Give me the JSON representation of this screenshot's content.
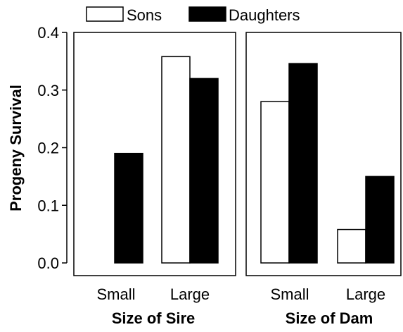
{
  "chart_data": {
    "type": "bar",
    "ylabel": "Progeny Survival",
    "ylim": [
      0,
      0.4
    ],
    "yticks": [
      "0.0",
      "0.1",
      "0.2",
      "0.3",
      "0.4"
    ],
    "legend": {
      "placement": "top",
      "entries": [
        {
          "name": "Sons",
          "fill": "#ffffff"
        },
        {
          "name": "Daughters",
          "fill": "#000000"
        }
      ]
    },
    "panels": [
      {
        "xlabel": "Size of Sire",
        "categories": [
          "Small",
          "Large"
        ],
        "series": [
          {
            "name": "Sons",
            "values": [
              0.0,
              0.358
            ]
          },
          {
            "name": "Daughters",
            "values": [
              0.19,
              0.32
            ]
          }
        ]
      },
      {
        "xlabel": "Size of Dam",
        "categories": [
          "Small",
          "Large"
        ],
        "series": [
          {
            "name": "Sons",
            "values": [
              0.28,
              0.058
            ]
          },
          {
            "name": "Daughters",
            "values": [
              0.346,
              0.15
            ]
          }
        ]
      }
    ],
    "grid": false,
    "colors": {
      "sons": "#ffffff",
      "daughters": "#000000",
      "stroke": "#000000"
    }
  }
}
